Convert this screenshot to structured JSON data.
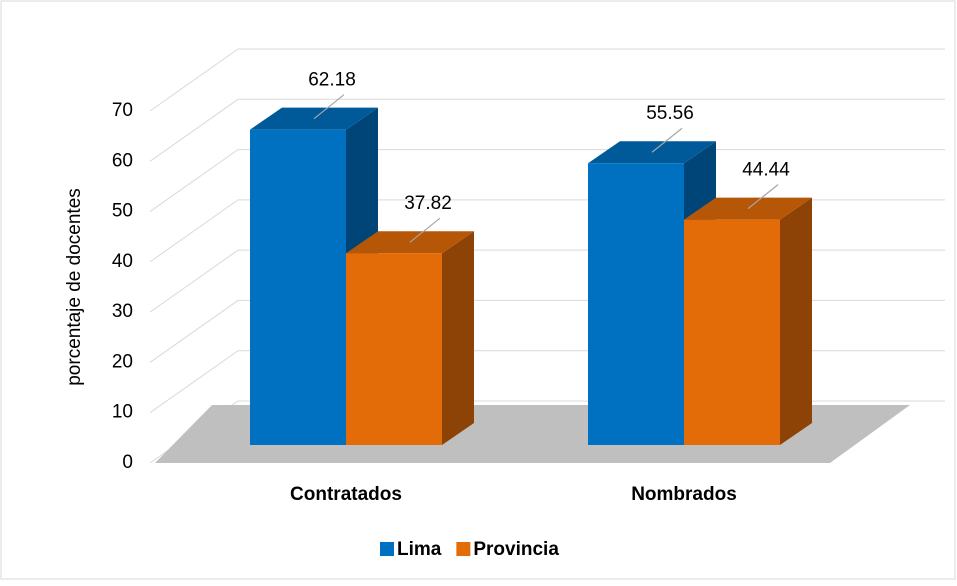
{
  "chart_data": {
    "type": "bar3d",
    "y_label": "porcentaje de docentes",
    "categories": [
      "Contratados",
      "Nombrados"
    ],
    "series": [
      {
        "name": "Lima",
        "color": "#0070c0",
        "values": [
          62.18,
          55.56
        ]
      },
      {
        "name": "Provincia",
        "color": "#e36c09",
        "values": [
          37.82,
          44.44
        ]
      }
    ],
    "ylim": [
      0,
      70
    ],
    "yticks": [
      0,
      10,
      20,
      30,
      40,
      50,
      60,
      70
    ],
    "grid": true,
    "legend": "bottom"
  }
}
